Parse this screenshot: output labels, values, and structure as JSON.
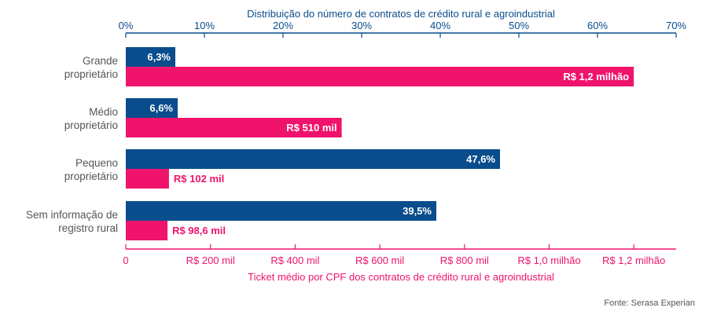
{
  "colors": {
    "blue": "#0a4d8c",
    "pink": "#f0136c",
    "axis_text": "#555555"
  },
  "source": "Fonte: Serasa Experian",
  "chart_data": {
    "type": "bar",
    "orientation": "horizontal",
    "grid": false,
    "categories": [
      [
        "Grande",
        "proprietário"
      ],
      [
        "Médio",
        "proprietário"
      ],
      [
        "Pequeno",
        "proprietário"
      ],
      [
        "Sem informação de",
        "registro rural"
      ]
    ],
    "series": [
      {
        "name": "Distribuição do número de contratos de crédito rural e agroindustrial",
        "axis": "top",
        "color": "#0a4d8c",
        "values": [
          6.3,
          6.6,
          47.6,
          39.5
        ],
        "labels": [
          "6,3%",
          "6,6%",
          "47,6%",
          "39,5%"
        ]
      },
      {
        "name": "Ticket médio por CPF dos contratos de crédito rural e agroindustrial",
        "axis": "bottom",
        "color": "#f0136c",
        "values": [
          1200000,
          510000,
          102000,
          98600
        ],
        "labels": [
          "R$ 1,2 milhão",
          "R$ 510 mil",
          "R$ 102 mil",
          "R$ 98,6 mil"
        ]
      }
    ],
    "top_axis": {
      "title": "Distribuição do número de contratos de crédito rural e agroindustrial",
      "range": [
        0,
        70
      ],
      "ticks": [
        0,
        10,
        20,
        30,
        40,
        50,
        60,
        70
      ],
      "tick_labels": [
        "0%",
        "10%",
        "20%",
        "30%",
        "40%",
        "50%",
        "60%",
        "70%"
      ]
    },
    "bottom_axis": {
      "title": "Ticket médio por CPF dos contratos de crédito rural e agroindustrial",
      "range": [
        0,
        1300000
      ],
      "ticks": [
        0,
        200000,
        400000,
        600000,
        800000,
        1000000,
        1200000
      ],
      "tick_labels": [
        "0",
        "R$ 200 mil",
        "R$ 400 mil",
        "R$ 600 mil",
        "R$ 800 mil",
        "R$ 1,0 milhão",
        "R$ 1,2 milhão"
      ]
    }
  }
}
